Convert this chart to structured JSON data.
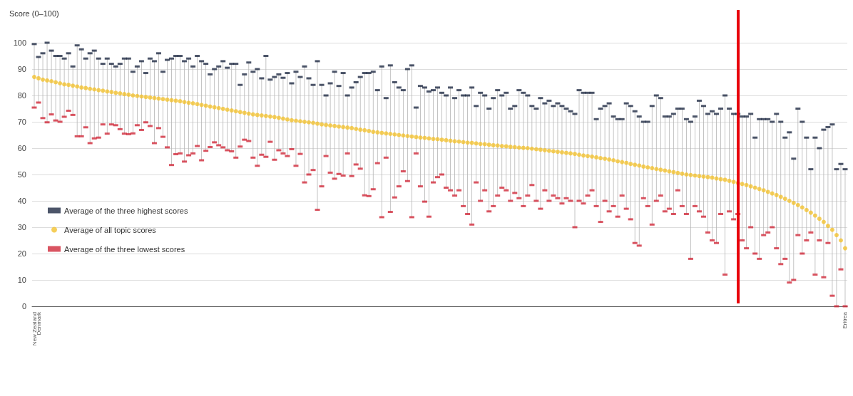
{
  "chart_data": {
    "type": "scatter",
    "ylabel": "Score (0–100)",
    "categories": [
      "New Zealand",
      "Denmark",
      null,
      null,
      null,
      null,
      null,
      null,
      null,
      null,
      null,
      null,
      null,
      null,
      null,
      null,
      null,
      null,
      null,
      null,
      null,
      null,
      null,
      null,
      null,
      null,
      null,
      null,
      null,
      null,
      null,
      null,
      null,
      null,
      null,
      null,
      null,
      null,
      null,
      null,
      null,
      null,
      null,
      null,
      null,
      null,
      null,
      null,
      null,
      null,
      null,
      null,
      null,
      null,
      null,
      null,
      null,
      null,
      null,
      null,
      null,
      null,
      null,
      null,
      null,
      null,
      null,
      null,
      null,
      null,
      null,
      null,
      null,
      null,
      null,
      null,
      null,
      null,
      null,
      null,
      null,
      null,
      null,
      null,
      null,
      null,
      null,
      null,
      null,
      null,
      null,
      null,
      null,
      null,
      null,
      null,
      null,
      null,
      null,
      null,
      null,
      null,
      null,
      null,
      null,
      null,
      null,
      null,
      null,
      null,
      null,
      null,
      null,
      null,
      null,
      null,
      null,
      null,
      null,
      null,
      null,
      null,
      null,
      null,
      null,
      null,
      null,
      null,
      null,
      null,
      null,
      null,
      null,
      null,
      null,
      null,
      null,
      null,
      null,
      null,
      null,
      null,
      null,
      null,
      null,
      null,
      null,
      null,
      null,
      null,
      null,
      null,
      null,
      null,
      null,
      null,
      null,
      null,
      null,
      null,
      null,
      null,
      null,
      null,
      null,
      null,
      null,
      null,
      null,
      null,
      null,
      null,
      null,
      null,
      null,
      null,
      null,
      null,
      null,
      null,
      null,
      null,
      null,
      null,
      null,
      null,
      null,
      null,
      null,
      "Eritrea"
    ],
    "series": [
      {
        "name": "Average of the three highest scores",
        "color": "#1f2a44",
        "marker": "square",
        "values": [
          99.5,
          94.6,
          96,
          100,
          97,
          95,
          95,
          94,
          96,
          91,
          99,
          97.5,
          94,
          96,
          97,
          94,
          92,
          94,
          92,
          91,
          92,
          94,
          94,
          89,
          91,
          93,
          88.5,
          94,
          93,
          96,
          89,
          93.5,
          94,
          95,
          95,
          93,
          94,
          91,
          95,
          93,
          92,
          88,
          90,
          91,
          93,
          90.5,
          92,
          92,
          84,
          88,
          92.5,
          89,
          90,
          86.5,
          95,
          86,
          87,
          88,
          86.7,
          88.5,
          84.6,
          89,
          87,
          91,
          86.5,
          84,
          93,
          84,
          80,
          84.6,
          89,
          83.6,
          88.5,
          80,
          83,
          85,
          87,
          88.5,
          88.5,
          89,
          82,
          91,
          79,
          91.4,
          85,
          83,
          82,
          90,
          91.4,
          75.4,
          83.6,
          83,
          81.5,
          82,
          83,
          81,
          80,
          83,
          79,
          82,
          80,
          80,
          83,
          76,
          81,
          80,
          75,
          79,
          82,
          80,
          81,
          75,
          76,
          82,
          81,
          80,
          76,
          75,
          79,
          77,
          78,
          76,
          77,
          76,
          75,
          74,
          73,
          82,
          81,
          81,
          81,
          71,
          75,
          76,
          77,
          72,
          71,
          71,
          77,
          76,
          74,
          72,
          70,
          70,
          76,
          80,
          79,
          72,
          72,
          73,
          75,
          75,
          71,
          70,
          72,
          78,
          76,
          73,
          74,
          73,
          75,
          80,
          75,
          73,
          73,
          72,
          72,
          73,
          64,
          71,
          71,
          71,
          70,
          73,
          70,
          64,
          66,
          56,
          75,
          70,
          64,
          52,
          64,
          60,
          67,
          68,
          69,
          52,
          54,
          52
        ]
      },
      {
        "name": "Average of all topic scores",
        "color": "#f2c230",
        "marker": "circle",
        "values": [
          87,
          86.5,
          86,
          85.7,
          85.4,
          85,
          84.6,
          84.2,
          84,
          83.7,
          83.4,
          83,
          82.8,
          82.5,
          82.3,
          82,
          81.8,
          81.5,
          81.3,
          81,
          80.8,
          80.5,
          80.3,
          80,
          79.8,
          79.6,
          79.4,
          79.2,
          79,
          78.8,
          78.6,
          78.4,
          78.2,
          78,
          77.8,
          77.5,
          77.2,
          77,
          76.7,
          76.4,
          76.1,
          75.8,
          75.5,
          75.2,
          74.9,
          74.6,
          74.3,
          74,
          73.7,
          73.4,
          73.1,
          72.8,
          72.6,
          72.4,
          72.2,
          72,
          71.8,
          71.5,
          71.2,
          70.9,
          70.6,
          70.4,
          70.2,
          70,
          69.8,
          69.6,
          69.3,
          69,
          68.8,
          68.6,
          68.4,
          68.2,
          68,
          67.8,
          67.6,
          67.3,
          67,
          66.8,
          66.5,
          66.2,
          66,
          65.8,
          65.6,
          65.4,
          65.2,
          65,
          64.8,
          64.6,
          64.4,
          64.2,
          64,
          63.9,
          63.7,
          63.5,
          63.4,
          63.2,
          63,
          62.8,
          62.6,
          62.5,
          62.3,
          62.1,
          62,
          61.8,
          61.6,
          61.5,
          61.3,
          61.1,
          61,
          60.8,
          60.7,
          60.5,
          60.4,
          60.2,
          60.1,
          60,
          59.8,
          59.6,
          59.4,
          59.2,
          59,
          58.8,
          58.6,
          58.4,
          58.2,
          58,
          57.8,
          57.5,
          57.2,
          57,
          56.8,
          56.5,
          56.2,
          56,
          55.7,
          55.4,
          55,
          54.7,
          54.4,
          54,
          53.7,
          53.4,
          53,
          52.7,
          52.4,
          52.1,
          51.8,
          51.5,
          51.2,
          50.9,
          50.6,
          50.3,
          50,
          49.8,
          49.6,
          49.4,
          49.2,
          49,
          48.8,
          48.5,
          48.2,
          48,
          47.6,
          47.2,
          46.8,
          46.4,
          46,
          45.5,
          45,
          44.5,
          44,
          43.4,
          42.8,
          42.2,
          41.5,
          40.8,
          40,
          39.2,
          38.4,
          37.5,
          36.5,
          35.5,
          34.4,
          33.2,
          32,
          30.5,
          29,
          27,
          25,
          22
        ]
      },
      {
        "name": "Average of the three lowest scores",
        "color": "#d0293a",
        "marker": "square",
        "values": [
          75.4,
          77.3,
          71.4,
          69.8,
          72.8,
          70.5,
          70,
          71.9,
          74.2,
          72.6,
          64.5,
          64.5,
          67.9,
          61.9,
          63.7,
          64,
          69,
          65.5,
          69,
          68.7,
          67.2,
          65.5,
          65.3,
          65.6,
          68.7,
          66.9,
          69.8,
          68.4,
          61.9,
          67.6,
          64.3,
          60.3,
          53.6,
          57.7,
          58,
          54.9,
          57.3,
          58,
          60.8,
          55.4,
          59,
          60.4,
          62.2,
          61.1,
          60.3,
          59.2,
          58.8,
          56.4,
          60.6,
          63.2,
          62.7,
          56.4,
          53.3,
          57.5,
          56.7,
          62.4,
          55.6,
          59.2,
          58,
          57,
          59.6,
          53.3,
          57.8,
          47,
          50,
          51.7,
          36.6,
          45.5,
          57,
          50.7,
          48.4,
          50.2,
          49.6,
          58,
          49.4,
          53.8,
          52.2,
          42.1,
          41.8,
          44.4,
          54.3,
          33.8,
          56.4,
          35.8,
          41.3,
          45.5,
          51.2,
          47.5,
          33.8,
          58,
          45.5,
          39.7,
          34,
          47,
          49,
          50,
          45,
          44,
          42,
          44,
          38,
          35,
          31,
          47,
          40,
          44,
          36,
          38,
          42,
          45,
          44,
          40,
          43,
          41,
          38,
          42,
          46,
          40,
          37,
          44,
          40,
          42,
          41,
          39,
          41,
          40,
          30,
          40,
          39,
          42,
          44,
          38,
          32,
          40,
          36,
          38,
          34,
          42,
          37,
          33,
          24,
          23,
          41,
          38,
          31,
          40,
          42,
          36,
          37,
          35,
          44,
          38,
          35,
          18,
          38,
          36,
          34,
          28,
          25,
          24,
          35,
          12,
          36,
          33,
          35,
          25,
          22,
          30,
          20,
          18,
          27,
          28,
          30,
          22,
          16,
          18,
          9,
          10,
          27,
          20,
          25,
          28,
          12,
          25,
          11,
          24,
          4,
          0,
          14,
          0
        ]
      }
    ],
    "ylim": [
      0,
      100
    ],
    "yticks": [
      0,
      10,
      20,
      30,
      40,
      50,
      60,
      70,
      80,
      90,
      100
    ],
    "grid": "y",
    "legend": "bottom left"
  }
}
